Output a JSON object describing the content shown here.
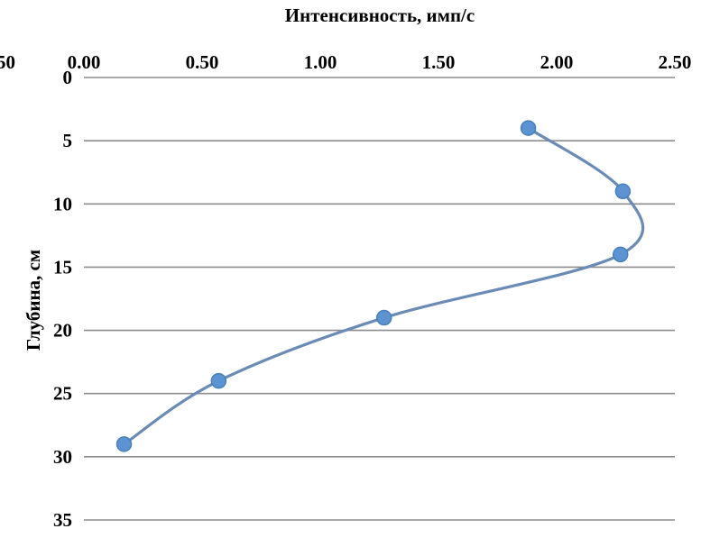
{
  "chart_data": {
    "type": "scatter",
    "title": "",
    "xlabel": "Интенсивность, имп/с",
    "ylabel": "Глубина, см",
    "xlim": [
      0.0,
      2.5
    ],
    "ylim": [
      0,
      35
    ],
    "x_axis_position": "top",
    "y_axis_reversed": true,
    "x_ticks": [
      "0.00",
      "0.50",
      "1.00",
      "1.50",
      "2.00",
      "2.50"
    ],
    "y_ticks": [
      "0",
      "5",
      "10",
      "15",
      "20",
      "25",
      "30",
      "35"
    ],
    "clipped_left_tick": "50",
    "grid": "horizontal",
    "line_style": "smooth",
    "series": [
      {
        "color": "#5b93d3",
        "points": [
          {
            "x": 1.88,
            "y": 4
          },
          {
            "x": 2.28,
            "y": 9
          },
          {
            "x": 2.27,
            "y": 14
          },
          {
            "x": 1.27,
            "y": 19
          },
          {
            "x": 0.57,
            "y": 24
          },
          {
            "x": 0.17,
            "y": 29
          }
        ]
      }
    ]
  }
}
